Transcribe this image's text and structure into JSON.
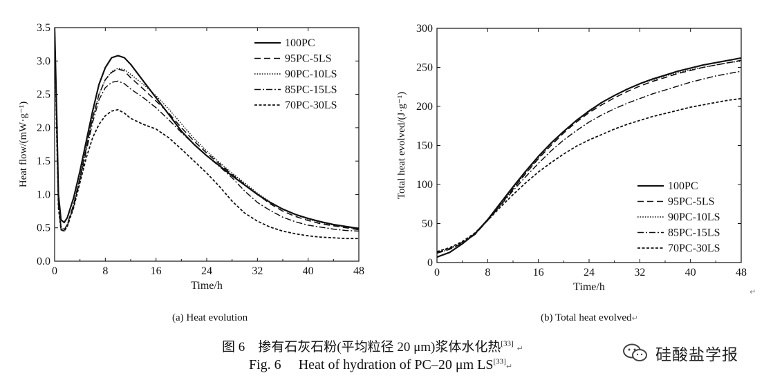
{
  "chart_data": [
    {
      "type": "line",
      "panel": "a",
      "caption": "(a) Heat evolution",
      "xlabel": "Time/h",
      "ylabel": "Heat flow/(mW·g⁻¹)",
      "xlim": [
        0,
        48
      ],
      "ylim": [
        0,
        3.5
      ],
      "xticks": [
        "0",
        "8",
        "16",
        "24",
        "32",
        "40",
        "48"
      ],
      "yticks": [
        "0.0",
        "0.5",
        "1.0",
        "1.5",
        "2.0",
        "2.5",
        "3.0",
        "3.5"
      ],
      "legend_position": "top-right",
      "series": [
        {
          "name": "100PC",
          "style": "solid",
          "x": [
            0,
            0.3,
            0.6,
            1,
            1.5,
            2,
            3,
            4,
            5,
            6,
            7,
            8,
            9,
            10,
            11,
            12,
            14,
            16,
            18,
            20,
            22,
            24,
            26,
            28,
            30,
            32,
            34,
            36,
            38,
            40,
            42,
            44,
            46,
            48
          ],
          "y": [
            3.5,
            2.3,
            1.0,
            0.62,
            0.58,
            0.65,
            0.95,
            1.35,
            1.8,
            2.25,
            2.65,
            2.9,
            3.05,
            3.08,
            3.05,
            2.95,
            2.7,
            2.45,
            2.2,
            1.95,
            1.75,
            1.58,
            1.43,
            1.28,
            1.14,
            1.0,
            0.88,
            0.78,
            0.7,
            0.64,
            0.59,
            0.55,
            0.52,
            0.49
          ]
        },
        {
          "name": "95PC-5LS",
          "style": "dashed",
          "x": [
            0,
            0.3,
            0.6,
            1,
            1.5,
            2,
            3,
            4,
            5,
            6,
            7,
            8,
            9,
            10,
            11,
            12,
            14,
            16,
            18,
            20,
            22,
            24,
            26,
            28,
            30,
            32,
            34,
            36,
            38,
            40,
            42,
            44,
            46,
            48
          ],
          "y": [
            3.5,
            2.2,
            0.9,
            0.52,
            0.47,
            0.55,
            0.85,
            1.25,
            1.7,
            2.15,
            2.5,
            2.72,
            2.83,
            2.88,
            2.85,
            2.75,
            2.58,
            2.4,
            2.22,
            2.0,
            1.8,
            1.62,
            1.46,
            1.3,
            1.15,
            1.0,
            0.86,
            0.75,
            0.67,
            0.61,
            0.56,
            0.53,
            0.5,
            0.47
          ]
        },
        {
          "name": "90PC-10LS",
          "style": "dotted",
          "x": [
            0,
            0.3,
            0.6,
            1,
            1.5,
            2,
            3,
            4,
            5,
            6,
            7,
            8,
            9,
            10,
            11,
            12,
            14,
            16,
            18,
            20,
            22,
            24,
            26,
            28,
            30,
            32,
            34,
            36,
            38,
            40,
            42,
            44,
            46,
            48
          ],
          "y": [
            3.5,
            2.2,
            0.9,
            0.52,
            0.47,
            0.55,
            0.85,
            1.25,
            1.7,
            2.15,
            2.5,
            2.72,
            2.84,
            2.89,
            2.87,
            2.8,
            2.65,
            2.48,
            2.28,
            2.06,
            1.84,
            1.65,
            1.48,
            1.32,
            1.17,
            1.02,
            0.89,
            0.78,
            0.7,
            0.63,
            0.58,
            0.54,
            0.51,
            0.48
          ]
        },
        {
          "name": "85PC-15LS",
          "style": "dashdot",
          "x": [
            0,
            0.3,
            0.6,
            1,
            1.5,
            2,
            3,
            4,
            5,
            6,
            7,
            8,
            9,
            10,
            11,
            12,
            14,
            16,
            18,
            20,
            22,
            24,
            26,
            28,
            30,
            32,
            34,
            36,
            38,
            40,
            42,
            44,
            46,
            48
          ],
          "y": [
            3.5,
            2.1,
            0.85,
            0.48,
            0.45,
            0.53,
            0.82,
            1.22,
            1.65,
            2.08,
            2.42,
            2.6,
            2.68,
            2.7,
            2.66,
            2.58,
            2.45,
            2.3,
            2.12,
            1.93,
            1.75,
            1.58,
            1.42,
            1.25,
            1.05,
            0.88,
            0.76,
            0.66,
            0.59,
            0.54,
            0.51,
            0.48,
            0.46,
            0.45
          ]
        },
        {
          "name": "70PC-30LS",
          "style": "dense-dash",
          "x": [
            0,
            0.3,
            0.6,
            1,
            1.5,
            2,
            3,
            4,
            5,
            6,
            7,
            8,
            9,
            10,
            11,
            12,
            14,
            16,
            18,
            20,
            22,
            24,
            26,
            28,
            30,
            32,
            34,
            36,
            38,
            40,
            42,
            44,
            46,
            48
          ],
          "y": [
            3.5,
            2.0,
            0.8,
            0.47,
            0.45,
            0.52,
            0.8,
            1.18,
            1.55,
            1.85,
            2.05,
            2.18,
            2.25,
            2.27,
            2.22,
            2.14,
            2.05,
            1.98,
            1.85,
            1.68,
            1.5,
            1.32,
            1.12,
            0.9,
            0.72,
            0.6,
            0.51,
            0.45,
            0.41,
            0.38,
            0.36,
            0.35,
            0.34,
            0.34
          ]
        }
      ]
    },
    {
      "type": "line",
      "panel": "b",
      "caption": "(b) Total heat evolved",
      "xlabel": "Time/h",
      "ylabel": "Total heat evolved/(J·g⁻¹)",
      "xlim": [
        0,
        48
      ],
      "ylim": [
        0,
        300
      ],
      "xticks": [
        "0",
        "8",
        "16",
        "24",
        "32",
        "40",
        "48"
      ],
      "yticks": [
        "0",
        "50",
        "100",
        "150",
        "200",
        "250",
        "300"
      ],
      "legend_position": "bottom-right",
      "series": [
        {
          "name": "100PC",
          "style": "solid",
          "x": [
            0,
            2,
            4,
            6,
            8,
            10,
            12,
            14,
            16,
            18,
            20,
            22,
            24,
            26,
            28,
            30,
            32,
            34,
            36,
            38,
            40,
            42,
            44,
            46,
            48
          ],
          "y": [
            7,
            13,
            24,
            37,
            55,
            76,
            97,
            117,
            136,
            153,
            168,
            182,
            194,
            205,
            214,
            222,
            229,
            235,
            240,
            245,
            249,
            253,
            256,
            259,
            262
          ]
        },
        {
          "name": "95PC-5LS",
          "style": "dashed",
          "x": [
            0,
            2,
            4,
            6,
            8,
            10,
            12,
            14,
            16,
            18,
            20,
            22,
            24,
            26,
            28,
            30,
            32,
            34,
            36,
            38,
            40,
            42,
            44,
            46,
            48
          ],
          "y": [
            12,
            17,
            25,
            36,
            54,
            74,
            94,
            114,
            133,
            150,
            166,
            180,
            192,
            202,
            211,
            219,
            226,
            232,
            237,
            242,
            246,
            250,
            253,
            256,
            259
          ]
        },
        {
          "name": "90PC-10LS",
          "style": "dotted",
          "x": [
            0,
            2,
            4,
            6,
            8,
            10,
            12,
            14,
            16,
            18,
            20,
            22,
            24,
            26,
            28,
            30,
            32,
            34,
            36,
            38,
            40,
            42,
            44,
            46,
            48
          ],
          "y": [
            12,
            17,
            25,
            36,
            54,
            74,
            95,
            115,
            134,
            152,
            168,
            182,
            195,
            205,
            214,
            222,
            229,
            234,
            239,
            243,
            247,
            250,
            253,
            256,
            258
          ]
        },
        {
          "name": "85PC-15LS",
          "style": "dashdot",
          "x": [
            0,
            2,
            4,
            6,
            8,
            10,
            12,
            14,
            16,
            18,
            20,
            22,
            24,
            26,
            28,
            30,
            32,
            34,
            36,
            38,
            40,
            42,
            44,
            46,
            48
          ],
          "y": [
            13,
            18,
            26,
            37,
            54,
            73,
            92,
            110,
            127,
            143,
            157,
            169,
            180,
            189,
            197,
            204,
            210,
            216,
            221,
            226,
            231,
            235,
            239,
            242,
            245
          ]
        },
        {
          "name": "70PC-30LS",
          "style": "dense-dash",
          "x": [
            0,
            2,
            4,
            6,
            8,
            10,
            12,
            14,
            16,
            18,
            20,
            22,
            24,
            26,
            28,
            30,
            32,
            34,
            36,
            38,
            40,
            42,
            44,
            46,
            48
          ],
          "y": [
            14,
            19,
            27,
            38,
            54,
            71,
            87,
            102,
            116,
            128,
            139,
            149,
            157,
            164,
            171,
            177,
            182,
            187,
            191,
            195,
            199,
            202,
            205,
            208,
            210
          ]
        }
      ]
    }
  ],
  "figure": {
    "caption_cn_label": "图 6",
    "caption_cn_text": "掺有石灰石粉(平均粒径 20 μm)浆体水化热",
    "caption_cn_ref": "[33]",
    "caption_en_label": "Fig. 6",
    "caption_en_text": "Heat of hydration of PC–20 μm LS",
    "caption_en_ref": "[33]",
    "return_mark": "↵",
    "watermark": "硅酸盐学报"
  }
}
